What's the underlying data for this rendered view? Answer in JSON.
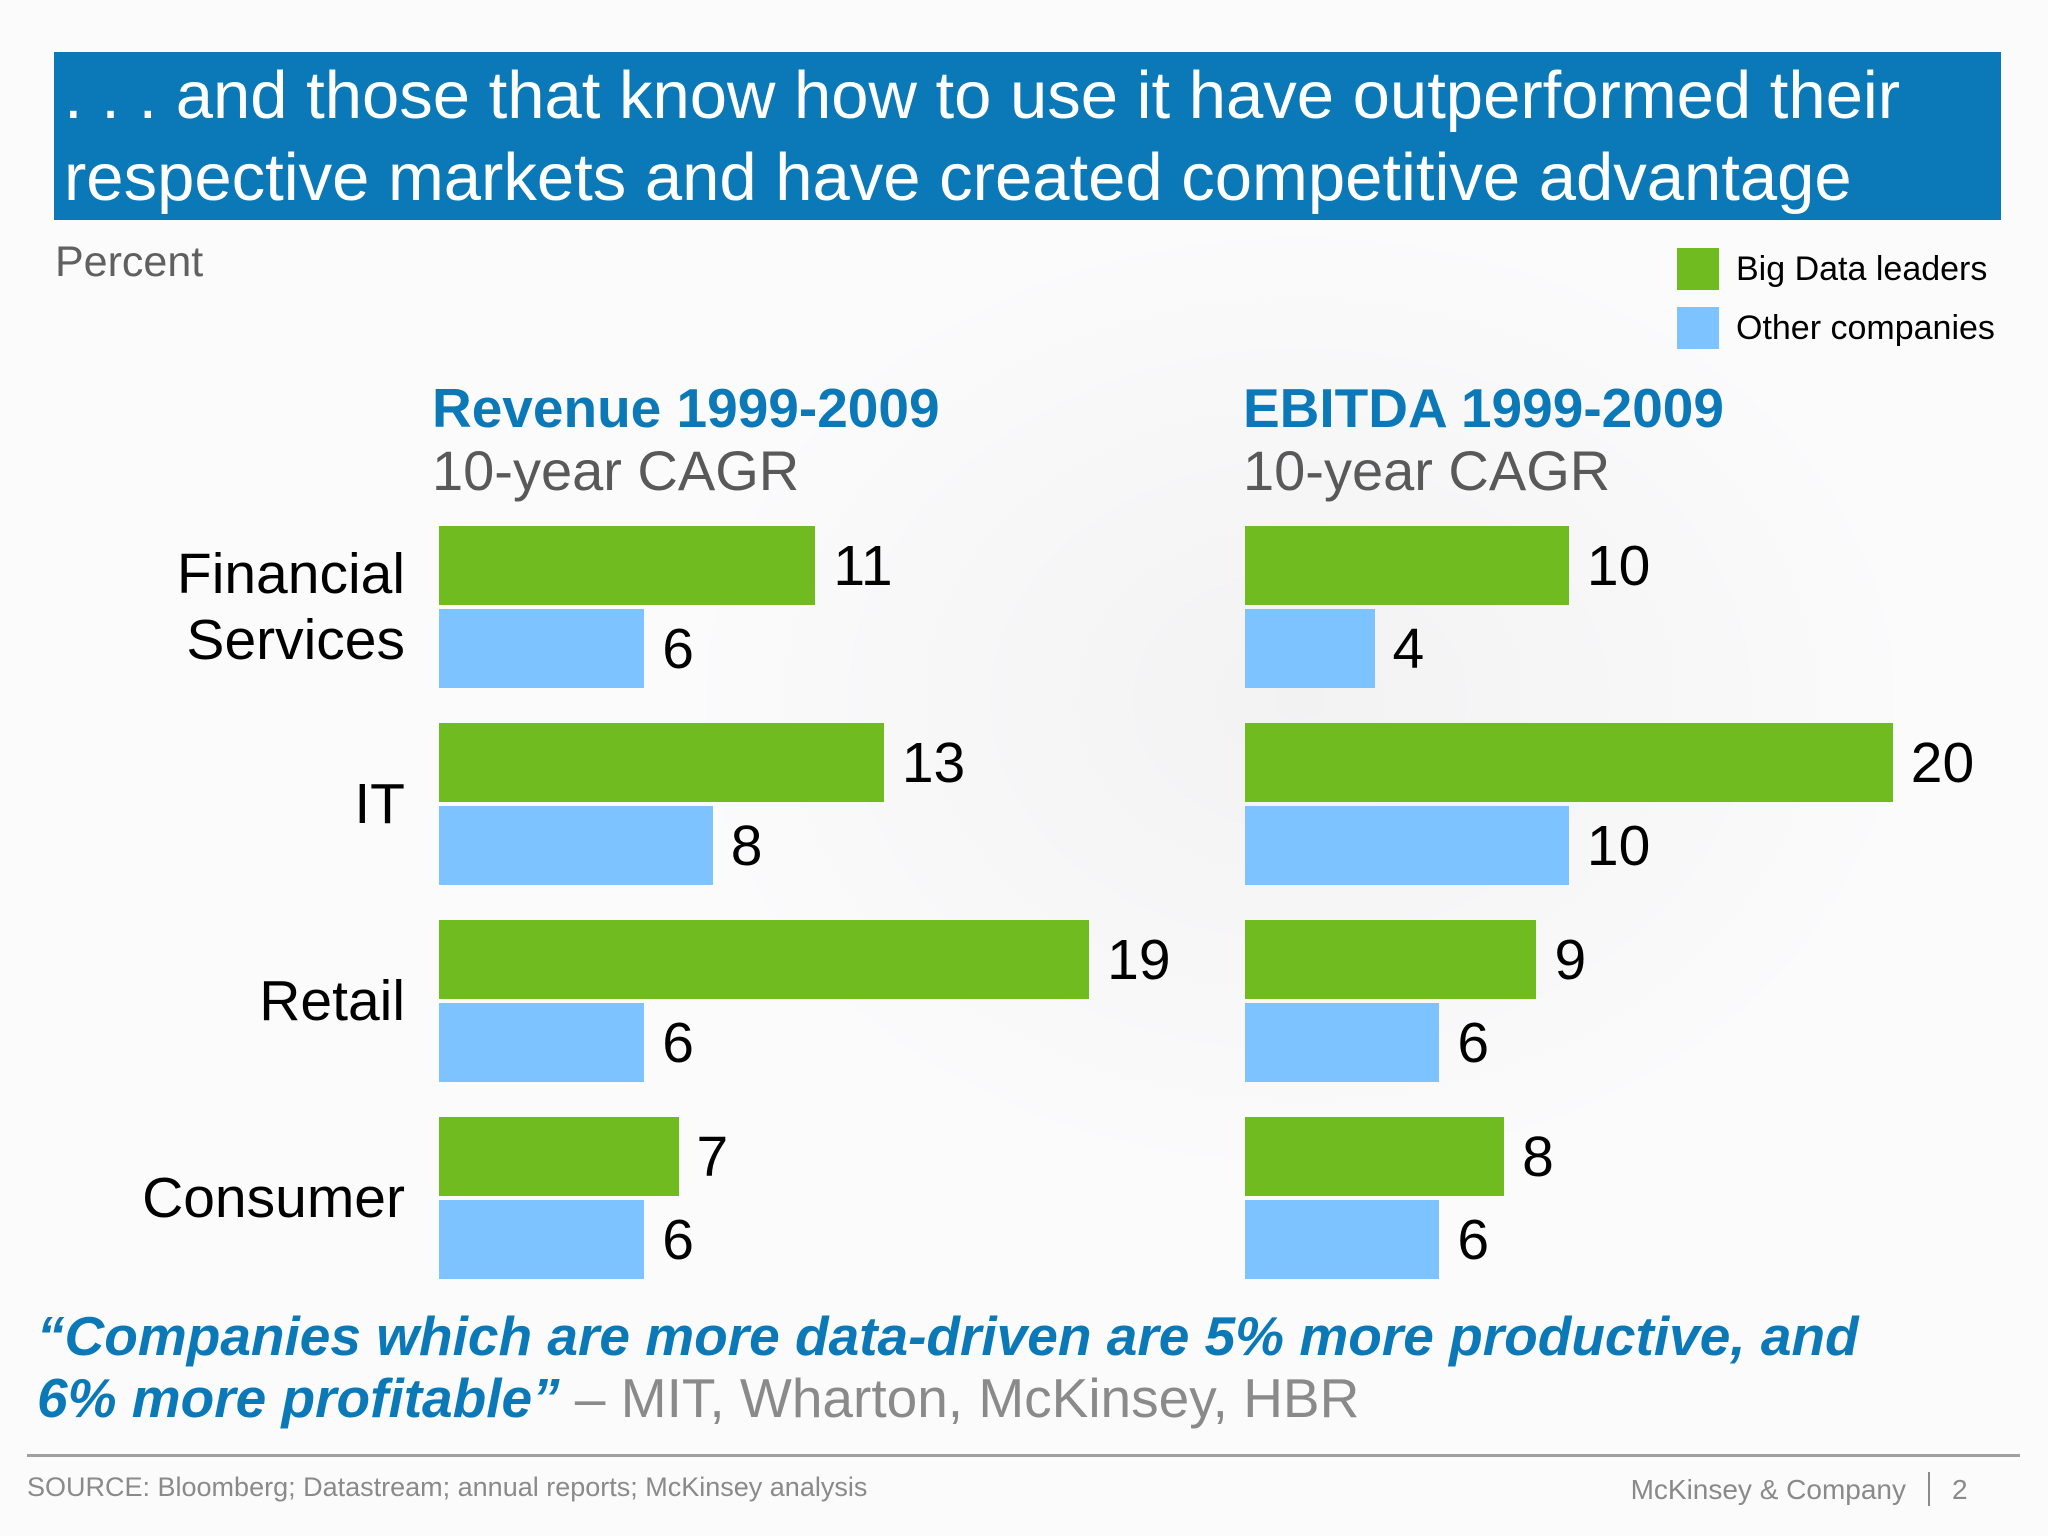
{
  "header": {
    "title": ". . . and those that know how to use it have outperformed their respective markets and have created competitive advantage"
  },
  "unit_label": "Percent",
  "colors": {
    "banner": "#0b79b8",
    "leaders": "#6fbb20",
    "others": "#7dc3ff"
  },
  "chart_data": [
    {
      "type": "bar",
      "orientation": "horizontal",
      "title": "Revenue 1999-2009",
      "subtitle": "10-year CAGR",
      "categories": [
        "Financial Services",
        "IT",
        "Retail",
        "Consumer"
      ],
      "series": [
        {
          "name": "Big Data leaders",
          "values": [
            11,
            13,
            19,
            7
          ]
        },
        {
          "name": "Other companies",
          "values": [
            6,
            8,
            6,
            6
          ]
        }
      ]
    },
    {
      "type": "bar",
      "orientation": "horizontal",
      "title": "EBITDA 1999-2009",
      "subtitle": "10-year CAGR",
      "categories": [
        "Financial Services",
        "IT",
        "Retail",
        "Consumer"
      ],
      "series": [
        {
          "name": "Big Data leaders",
          "values": [
            10,
            20,
            9,
            8
          ]
        },
        {
          "name": "Other companies",
          "values": [
            4,
            10,
            6,
            6
          ]
        }
      ]
    }
  ],
  "legend": {
    "position": "top-right",
    "items": [
      "Big Data leaders",
      "Other companies"
    ]
  },
  "quote": {
    "text": "“Companies which are more data-driven are 5% more productive, and 6% more profitable”",
    "attribution": " – MIT, Wharton, McKinsey, HBR"
  },
  "footer": {
    "source": "SOURCE: Bloomberg; Datastream; annual reports; McKinsey analysis",
    "brand": "McKinsey & Company",
    "page": "2"
  }
}
